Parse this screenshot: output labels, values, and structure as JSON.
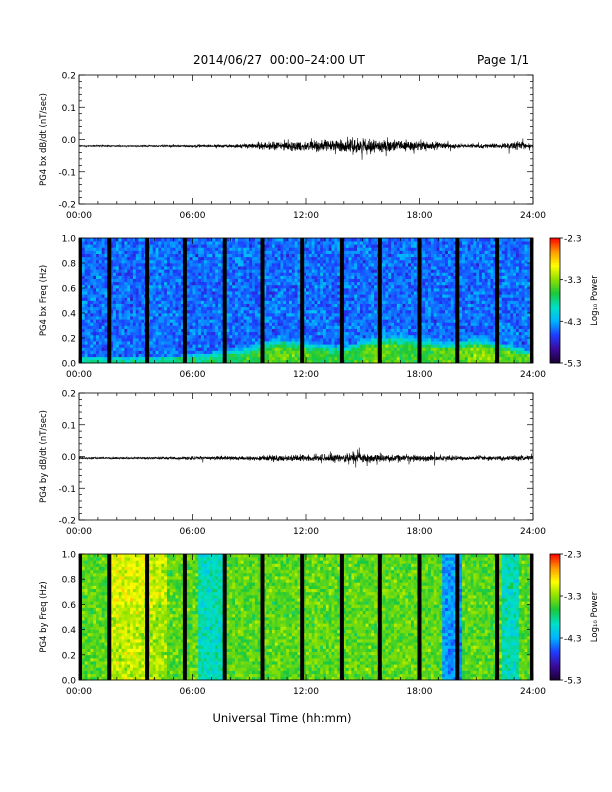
{
  "header": {
    "title": "2014/06/27  00:00–24:00 UT",
    "page": "Page 1/1"
  },
  "colors": {
    "trace": "#000000",
    "colorbar_stops": [
      "#1a0033",
      "#3b0a9c",
      "#1e3cff",
      "#00b4ff",
      "#00e0c8",
      "#19c83c",
      "#8ee000",
      "#ffff00",
      "#ff9900",
      "#ff0000"
    ]
  },
  "xlabel": "Universal Time (hh:mm)",
  "chart_data": [
    {
      "id": "bx-dbdt",
      "type": "line",
      "ylabel": "PG4 bx dB/dt (nT/sec)",
      "xlim": [
        0,
        24
      ],
      "x_unit": "hours UT",
      "ylim": [
        -0.2,
        0.2
      ],
      "xticks": [
        "00:00",
        "06:00",
        "12:00",
        "18:00",
        "24:00"
      ],
      "yticks": [
        "0.2",
        "0.1",
        "0.0",
        "-0.1",
        "-0.2"
      ],
      "baseline": -0.02,
      "envelope": {
        "x": [
          0,
          2,
          4,
          6,
          8,
          9.5,
          10.5,
          11.5,
          12.5,
          13.5,
          14.5,
          15.5,
          16.5,
          17.5,
          18.5,
          19.5,
          20.5,
          21.5,
          22.5,
          23.2,
          24
        ],
        "amplitude": [
          0.002,
          0.002,
          0.002,
          0.003,
          0.004,
          0.008,
          0.012,
          0.012,
          0.014,
          0.016,
          0.02,
          0.016,
          0.013,
          0.015,
          0.012,
          0.007,
          0.005,
          0.005,
          0.006,
          0.012,
          0.006
        ]
      }
    },
    {
      "id": "bx-spectrogram",
      "type": "heatmap",
      "ylabel": "PG4 bx Freq (Hz)",
      "xlim": [
        0,
        24
      ],
      "ylim": [
        0,
        1.0
      ],
      "xticks": [
        "00:00",
        "06:00",
        "12:00",
        "18:00",
        "24:00"
      ],
      "yticks": [
        "1.0",
        "0.8",
        "0.6",
        "0.4",
        "0.2",
        "0.0"
      ],
      "colorbar": {
        "label": "Log₁₀ Power",
        "range": [
          -5.3,
          -2.3
        ],
        "ticks": [
          "-2.3",
          "-3.3",
          "-4.3",
          "-5.3"
        ]
      },
      "background_level": -4.5,
      "gaps_hours": [
        0,
        1.6,
        3.6,
        5.6,
        7.7,
        9.7,
        11.8,
        13.9,
        15.9,
        18.0,
        20.0,
        22.1,
        24
      ],
      "low_freq_band": {
        "x": [
          0,
          4,
          7,
          9,
          10.5,
          12,
          14,
          15.5,
          16.5,
          18,
          19.5,
          21,
          22.5,
          24
        ],
        "level": [
          -3.9,
          -3.8,
          -3.75,
          -3.65,
          -3.45,
          -3.5,
          -3.65,
          -3.4,
          -3.5,
          -3.55,
          -3.45,
          -3.3,
          -3.4,
          -3.5
        ],
        "height": [
          0.03,
          0.03,
          0.05,
          0.08,
          0.12,
          0.1,
          0.08,
          0.12,
          0.14,
          0.12,
          0.1,
          0.12,
          0.09,
          0.06
        ]
      }
    },
    {
      "id": "by-dbdt",
      "type": "line",
      "ylabel": "PG4 by dB/dt (nT/sec)",
      "xlim": [
        0,
        24
      ],
      "x_unit": "hours UT",
      "ylim": [
        -0.2,
        0.2
      ],
      "xticks": [
        "00:00",
        "06:00",
        "12:00",
        "18:00",
        "24:00"
      ],
      "yticks": [
        "0.2",
        "0.1",
        "0.0",
        "-0.1",
        "-0.2"
      ],
      "baseline": -0.005,
      "envelope": {
        "x": [
          0,
          2,
          4,
          6,
          8,
          9.5,
          10.5,
          11.5,
          12.5,
          13.5,
          14.5,
          15.5,
          16.5,
          17.5,
          18.5,
          19.5,
          20.5,
          21.5,
          22.5,
          23.2,
          24
        ],
        "amplitude": [
          0.002,
          0.003,
          0.003,
          0.004,
          0.005,
          0.006,
          0.008,
          0.008,
          0.01,
          0.011,
          0.015,
          0.011,
          0.009,
          0.009,
          0.008,
          0.006,
          0.005,
          0.005,
          0.005,
          0.007,
          0.005
        ]
      }
    },
    {
      "id": "by-spectrogram",
      "type": "heatmap",
      "ylabel": "PG4 by Freq (Hz)",
      "xlim": [
        0,
        24
      ],
      "ylim": [
        0,
        1.0
      ],
      "xticks": [
        "00:00",
        "06:00",
        "12:00",
        "18:00",
        "24:00"
      ],
      "yticks": [
        "1.0",
        "0.8",
        "0.6",
        "0.4",
        "0.2",
        "0.0"
      ],
      "colorbar": {
        "label": "Log₁₀ Power",
        "range": [
          -5.3,
          -2.3
        ],
        "ticks": [
          "-2.3",
          "-3.3",
          "-4.3",
          "-5.3"
        ]
      },
      "background_level": -3.45,
      "gaps_hours": [
        0,
        1.6,
        3.6,
        5.6,
        7.7,
        9.7,
        11.8,
        13.9,
        15.9,
        18.0,
        20.0,
        22.1,
        24
      ],
      "warm_zones": [
        {
          "x": [
            1.6,
            3.6
          ],
          "level": -3.15
        },
        {
          "x": [
            3.6,
            4.6
          ],
          "level": -3.25
        }
      ],
      "cool_zones": [
        {
          "x": [
            6.3,
            7.6
          ],
          "level": -3.95
        },
        {
          "x": [
            19.2,
            20.3
          ],
          "level": -4.35
        },
        {
          "x": [
            22.3,
            23.3
          ],
          "level": -3.95
        }
      ]
    }
  ]
}
